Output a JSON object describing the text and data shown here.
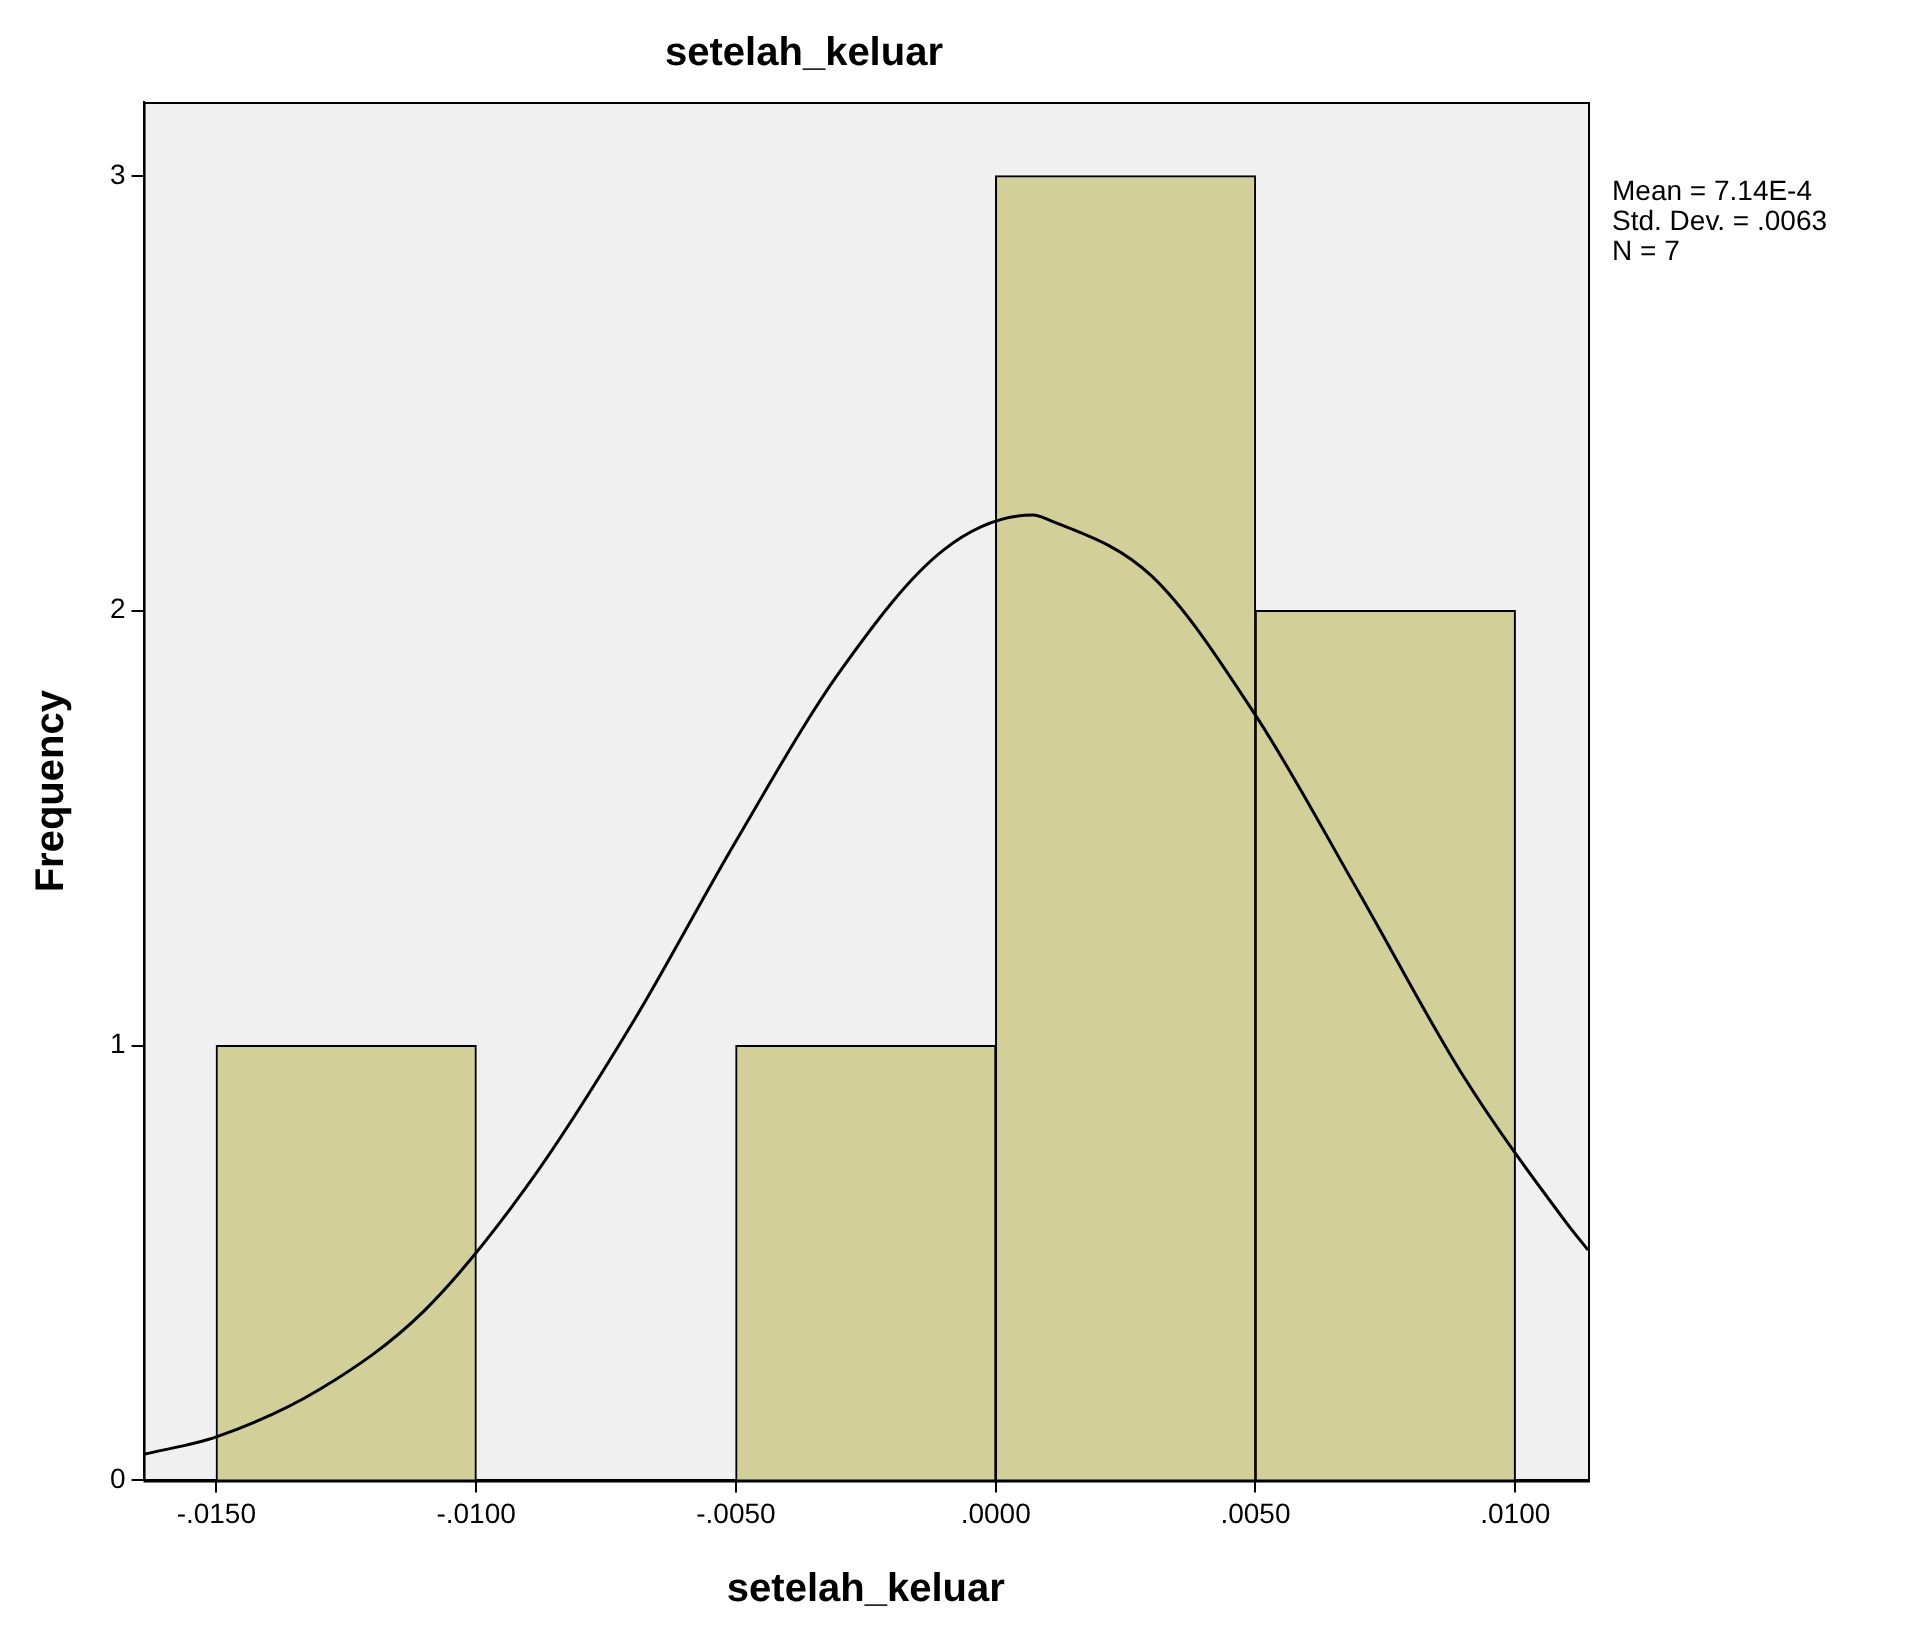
{
  "chart_data": {
    "type": "histogram",
    "title": "setelah_keluar",
    "xlabel": "setelah_keluar",
    "ylabel": "Frequency",
    "bins": [
      -0.015,
      -0.01,
      -0.005,
      0,
      0.005,
      0.01
    ],
    "series": [
      {
        "type": "histogram",
        "color": "#d3cf98",
        "values": [
          1,
          0,
          1,
          3,
          2
        ]
      },
      {
        "type": "line",
        "color": "#000000",
        "x": [
          -0.0164,
          -0.015,
          -0.013,
          -0.011,
          -0.009,
          -0.007,
          -0.005,
          -0.003,
          -0.001,
          0.000714,
          0.001,
          0.003,
          0.005,
          0.007,
          0.009,
          0.011,
          0.0114
        ],
        "values": [
          0.06,
          0.1,
          0.21,
          0.39,
          0.68,
          1.05,
          1.47,
          1.86,
          2.14,
          2.22,
          2.21,
          2.08,
          1.76,
          1.35,
          0.93,
          0.59,
          0.53
        ]
      }
    ],
    "xlim": [
      -0.0164,
      0.0114
    ],
    "xticks": [
      {
        "value": -0.015,
        "label": "-.0150"
      },
      {
        "value": -0.01,
        "label": "-.0100"
      },
      {
        "value": -0.005,
        "label": "-.0050"
      },
      {
        "value": 0,
        "label": ".0000"
      },
      {
        "value": 0.005,
        "label": ".0050"
      },
      {
        "value": 0.01,
        "label": ".0100"
      }
    ],
    "ylim": [
      0,
      3.17
    ],
    "yticks": [
      0,
      1,
      2,
      3
    ],
    "grid": false,
    "legend": false,
    "annotations": [
      "Mean = 7.14E-4",
      "Std. Dev. = .0063",
      "N = 7"
    ]
  }
}
